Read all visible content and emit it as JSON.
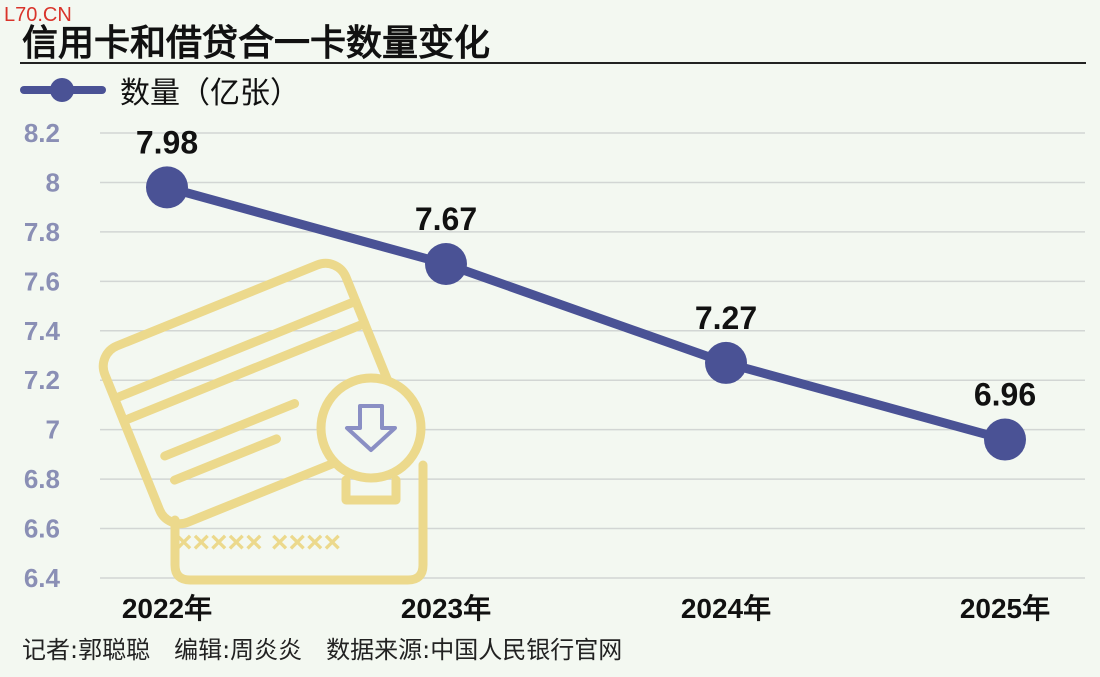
{
  "watermark": "L70.CN",
  "footer": "记者:郭聪聪　编辑:周炎炎　数据来源:中国人民银行官网",
  "colors": {
    "series": "#4a5295",
    "grid": "#d2d6d4",
    "ytick": "#8a8fb5",
    "background": "#f3f8f1",
    "illustration": "#ecd98c",
    "illustration_arrow": "#8a8fc4"
  },
  "illustration": {
    "icon": "credit-card-down-arrow-icon",
    "mask_text": "××××× ××××"
  },
  "chart_data": {
    "type": "line",
    "title": "信用卡和借贷合一卡数量变化",
    "categories": [
      "2022年",
      "2023年",
      "2024年",
      "2025年"
    ],
    "series": [
      {
        "name": "数量（亿张）",
        "values": [
          7.98,
          7.67,
          7.27,
          6.96
        ]
      }
    ],
    "data_labels": [
      "7.98",
      "7.67",
      "7.27",
      "6.96"
    ],
    "yticks": [
      "6.4",
      "6.6",
      "6.8",
      "7",
      "7.2",
      "7.4",
      "7.6",
      "7.8",
      "8",
      "8.2"
    ],
    "ylim": [
      6.4,
      8.2
    ],
    "grid": true,
    "legend": "top-left"
  }
}
